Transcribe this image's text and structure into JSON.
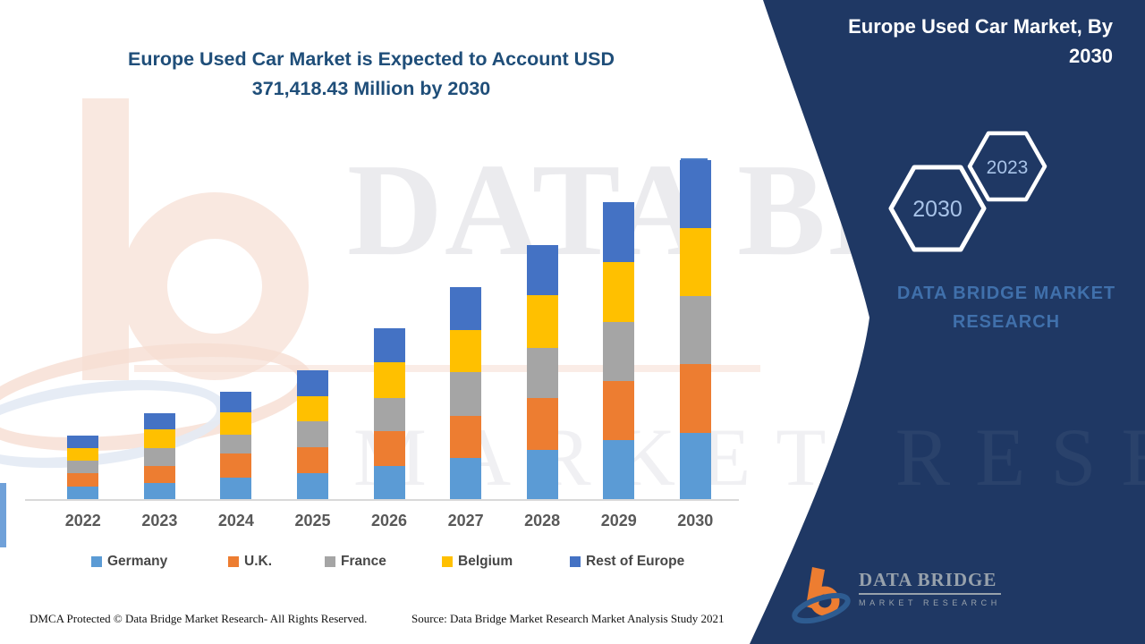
{
  "header": {
    "left_title_line1": "Europe Used Car Market is Expected to Account USD",
    "left_title_line2": "371,418.43 Million by 2030",
    "panel_title_line1": "Europe Used Car Market, By",
    "panel_title_line2": "2030"
  },
  "side_panel": {
    "panel_color": "#1F3864",
    "hexagon_large_label": "2030",
    "hexagon_small_label": "2023",
    "brand_line1": "DATA BRIDGE MARKET",
    "brand_line2": "RESEARCH",
    "logo_name": "DATA BRIDGE",
    "logo_subname": "MARKET RESEARCH"
  },
  "watermark": {
    "line1": "DATA BRIDGE",
    "line2": "MARKET RESEARCH"
  },
  "footer": {
    "dmca": "DMCA Protected © Data Bridge Market Research- All Rights Reserved.",
    "source": "Source: Data Bridge Market Research Market Analysis Study 2021"
  },
  "chart_data": {
    "type": "bar",
    "stacked": true,
    "title": "Europe Used Car Market is Expected to Account USD 371,418.43 Million by 2030",
    "unit": "USD Million",
    "stated_total_2030": 371418.43,
    "legend_position": "bottom",
    "y_axis_visible": false,
    "grid": false,
    "categories": [
      "2022",
      "2023",
      "2024",
      "2025",
      "2026",
      "2027",
      "2028",
      "2029",
      "2030"
    ],
    "series": [
      {
        "name": "Germany",
        "color": "#5B9BD5",
        "values": [
          13700,
          17300,
          23800,
          28000,
          35900,
          45500,
          54300,
          64700,
          72900
        ]
      },
      {
        "name": "U.K.",
        "color": "#ED7D31",
        "values": [
          14700,
          18600,
          26200,
          28400,
          38600,
          45700,
          56200,
          64400,
          75100
        ]
      },
      {
        "name": "France",
        "color": "#A5A5A5",
        "values": [
          13700,
          20000,
          20600,
          28400,
          36600,
          48000,
          55600,
          65400,
          74500
        ]
      },
      {
        "name": "Belgium",
        "color": "#FFC000",
        "values": [
          14000,
          20200,
          24100,
          27800,
          38500,
          46500,
          57100,
          65300,
          74200
        ]
      },
      {
        "name": "Rest of Europe",
        "color": "#4472C4",
        "values": [
          13100,
          18000,
          22900,
          28000,
          37600,
          46700,
          55600,
          65400,
          74718.43
        ]
      }
    ],
    "estimated_totals": [
      69200,
      94100,
      117600,
      140600,
      187200,
      232400,
      278800,
      325200,
      371418.43
    ]
  }
}
